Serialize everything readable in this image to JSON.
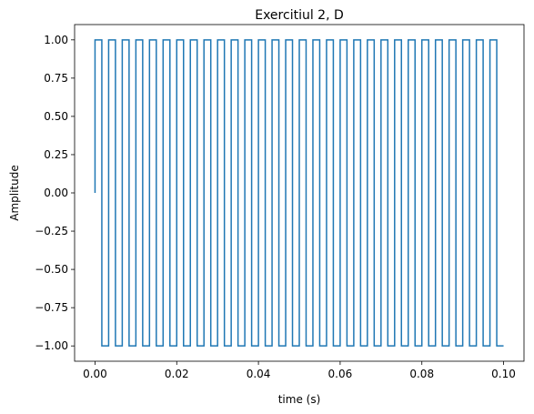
{
  "chart_data": {
    "type": "line",
    "title": "Exercitiul 2, D",
    "xlabel": "time (s)",
    "ylabel": "Amplitude",
    "xlim": [
      -0.005,
      0.105
    ],
    "ylim": [
      -1.1,
      1.1
    ],
    "xticks": [
      0.0,
      0.02,
      0.04,
      0.06,
      0.08,
      0.1
    ],
    "xtick_labels": [
      "0.00",
      "0.02",
      "0.04",
      "0.06",
      "0.08",
      "0.10"
    ],
    "yticks": [
      -1.0,
      -0.75,
      -0.5,
      -0.25,
      0.0,
      0.25,
      0.5,
      0.75,
      1.0
    ],
    "ytick_labels": [
      "−1.00",
      "−0.75",
      "−0.50",
      "−0.25",
      "0.00",
      "0.25",
      "0.50",
      "0.75",
      "1.00"
    ],
    "grid": false,
    "series": [
      {
        "color": "#1f77b4",
        "waveform": "square",
        "frequency_hz": 300,
        "amplitude": 1.0,
        "x_start": 0.0,
        "x_end": 0.1,
        "initial_value": 0.0
      }
    ]
  }
}
